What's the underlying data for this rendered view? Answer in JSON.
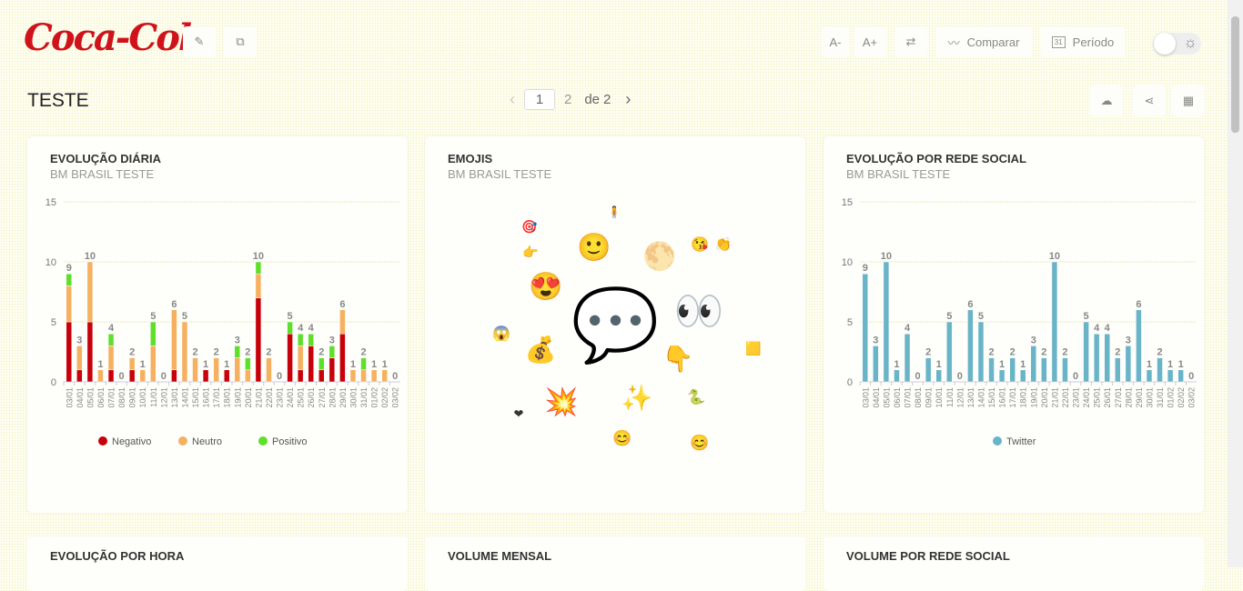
{
  "header": {
    "logo": "Coca-Cola",
    "font_smaller": "A-",
    "font_larger": "A+",
    "compare": "Comparar",
    "period": "Período",
    "calendar_day": "31",
    "title": "TESTE"
  },
  "pager": {
    "current": "1",
    "next_page": "2",
    "of": "de",
    "total": "2"
  },
  "cards": [
    {
      "title": "EVOLUÇÃO DIÁRIA",
      "subtitle": "BM BRASIL TESTE"
    },
    {
      "title": "EMOJIS",
      "subtitle": "BM BRASIL TESTE"
    },
    {
      "title": "EVOLUÇÃO POR REDE SOCIAL",
      "subtitle": "BM BRASIL TESTE"
    }
  ],
  "bottom_cards": [
    {
      "title": "EVOLUÇÃO POR HORA"
    },
    {
      "title": "VOLUME MENSAL"
    },
    {
      "title": "VOLUME POR REDE SOCIAL"
    }
  ],
  "emojis": [
    "🎯",
    "🧍",
    "👉",
    "🙂",
    "🌕",
    "😘",
    "👏",
    "😍",
    "💬",
    "👀",
    "😱",
    "💰",
    "👇",
    "🟨",
    "💥",
    "✨",
    "🐍",
    "❤",
    "😊",
    "😊"
  ],
  "chart_data": [
    {
      "type": "bar",
      "stacked": true,
      "ylim": [
        0,
        15
      ],
      "yticks": [
        0,
        5,
        10,
        15
      ],
      "grid": true,
      "legend": "bottom",
      "categories": [
        "03/01",
        "04/01",
        "05/01",
        "06/01",
        "07/01",
        "08/01",
        "09/01",
        "10/01",
        "11/01",
        "12/01",
        "13/01",
        "14/01",
        "15/01",
        "16/01",
        "17/01",
        "18/01",
        "19/01",
        "20/01",
        "21/01",
        "22/01",
        "23/01",
        "24/01",
        "25/01",
        "26/01",
        "27/01",
        "28/01",
        "29/01",
        "30/01",
        "31/01",
        "01/02",
        "02/02",
        "03/02"
      ],
      "series": [
        {
          "name": "Negativo",
          "color": "#c8000a",
          "values": [
            5,
            1,
            5,
            0,
            1,
            0,
            1,
            0,
            0,
            0,
            1,
            0,
            0,
            1,
            0,
            1,
            0,
            0,
            7,
            0,
            0,
            4,
            1,
            3,
            1,
            2,
            4,
            0,
            0,
            0,
            0,
            0
          ]
        },
        {
          "name": "Neutro",
          "color": "#f5b160",
          "values": [
            3,
            2,
            5,
            1,
            2,
            0,
            1,
            1,
            3,
            0,
            5,
            5,
            2,
            0,
            2,
            0,
            2,
            1,
            2,
            2,
            0,
            0,
            2,
            0,
            0,
            0,
            2,
            1,
            1,
            1,
            1,
            0
          ]
        },
        {
          "name": "Positivo",
          "color": "#5ee02a",
          "values": [
            1,
            0,
            0,
            0,
            1,
            0,
            0,
            0,
            2,
            0,
            0,
            0,
            0,
            0,
            0,
            0,
            1,
            1,
            1,
            0,
            0,
            1,
            1,
            1,
            1,
            1,
            0,
            0,
            1,
            0,
            0,
            0
          ]
        }
      ],
      "totals": [
        9,
        3,
        10,
        1,
        4,
        0,
        2,
        1,
        5,
        0,
        6,
        5,
        2,
        1,
        2,
        1,
        3,
        2,
        10,
        2,
        0,
        5,
        4,
        4,
        2,
        3,
        6,
        1,
        2,
        1,
        1,
        0
      ]
    },
    {
      "type": "bar",
      "ylim": [
        0,
        15
      ],
      "yticks": [
        0,
        5,
        10,
        15
      ],
      "grid": true,
      "legend": "bottom",
      "categories": [
        "03/01",
        "04/01",
        "05/01",
        "06/01",
        "07/01",
        "08/01",
        "09/01",
        "10/01",
        "11/01",
        "12/01",
        "13/01",
        "14/01",
        "15/01",
        "16/01",
        "17/01",
        "18/01",
        "19/01",
        "20/01",
        "21/01",
        "22/01",
        "23/01",
        "24/01",
        "25/01",
        "26/01",
        "27/01",
        "28/01",
        "29/01",
        "30/01",
        "31/01",
        "01/02",
        "02/02",
        "03/02"
      ],
      "series": [
        {
          "name": "Twitter",
          "color": "#6ab4c8",
          "values": [
            9,
            3,
            10,
            1,
            4,
            0,
            2,
            1,
            5,
            0,
            6,
            5,
            2,
            1,
            2,
            1,
            3,
            2,
            10,
            2,
            0,
            5,
            4,
            4,
            2,
            3,
            6,
            1,
            2,
            1,
            1,
            0
          ]
        }
      ],
      "totals": [
        9,
        3,
        10,
        1,
        4,
        0,
        2,
        1,
        5,
        0,
        6,
        5,
        2,
        1,
        2,
        1,
        3,
        2,
        10,
        2,
        0,
        5,
        4,
        4,
        2,
        3,
        6,
        1,
        2,
        1,
        1,
        0
      ]
    }
  ]
}
